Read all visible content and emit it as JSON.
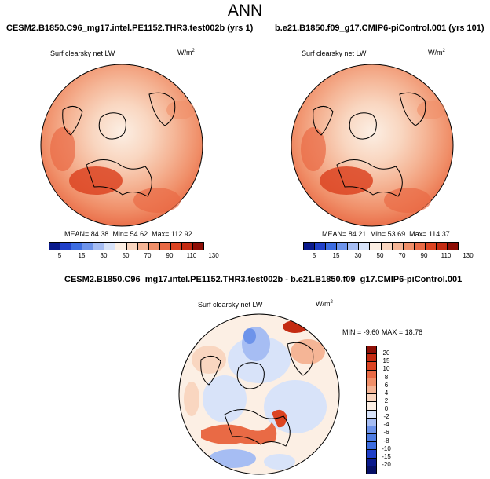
{
  "figure_title": "ANN",
  "panels": [
    {
      "case_name": "CESM2.B1850.C96_mg17.intel.PE1152.THR3.test002b (yrs 1)",
      "variable_label": "Surf clearsky net LW",
      "units": "W/m",
      "units_sup": "2",
      "stats": {
        "mean_label": "MEAN=",
        "mean": "84.38",
        "min_label": "Min=",
        "min": "54.62",
        "max_label": "Max=",
        "max": "112.92"
      }
    },
    {
      "case_name": "b.e21.B1850.f09_g17.CMIP6-piControl.001 (yrs 101)",
      "variable_label": "Surf clearsky net LW",
      "units": "W/m",
      "units_sup": "2",
      "stats": {
        "mean_label": "MEAN=",
        "mean": "84.21",
        "min_label": "Min=",
        "min": "53.69",
        "max_label": "Max=",
        "max": "114.37"
      }
    }
  ],
  "diff_panel": {
    "case_name": "CESM2.B1850.C96_mg17.intel.PE1152.THR3.test002b - b.e21.B1850.f09_g17.CMIP6-piControl.001",
    "variable_label": "Surf clearsky net LW",
    "units": "W/m",
    "units_sup": "2",
    "stats": {
      "min_label": "MIN =",
      "min": "-9.60",
      "max_label": "MAX =",
      "max": "18.78"
    }
  },
  "colorbar_abs": {
    "labels": [
      "5",
      "15",
      "30",
      "50",
      "70",
      "90",
      "110",
      "130"
    ],
    "colors": [
      "#0a1a8c",
      "#1f3fc8",
      "#3c6ce0",
      "#6d93ea",
      "#a6bdf3",
      "#d8e3f9",
      "#fcefe4",
      "#f9d6c0",
      "#f5b596",
      "#f08f69",
      "#e96a45",
      "#dc4422",
      "#c42b12",
      "#8e0e06"
    ]
  },
  "colorbar_diff": {
    "labels": [
      "20",
      "15",
      "10",
      "8",
      "6",
      "4",
      "2",
      "0",
      "-2",
      "-4",
      "-6",
      "-8",
      "-10",
      "-15",
      "-20"
    ],
    "colors": [
      "#8e0e06",
      "#c42b12",
      "#dc4422",
      "#e96a45",
      "#f08f69",
      "#f5b596",
      "#f9d6c0",
      "#fcefe4",
      "#d8e3f9",
      "#a6bdf3",
      "#6d93ea",
      "#4e7de3",
      "#3c6ce0",
      "#1f3fc8",
      "#0a1a8c",
      "#061066"
    ]
  },
  "chart_data": [
    {
      "type": "heatmap",
      "title": "CESM2.B1850.C96_mg17.intel.PE1152.THR3.test002b (yrs 1)",
      "variable": "Surf clearsky net LW",
      "units": "W/m2",
      "projection": "north polar stereographic",
      "mean": 84.38,
      "min": 54.62,
      "max": 112.92,
      "colorbar_levels": [
        5,
        15,
        30,
        50,
        70,
        90,
        110,
        130
      ]
    },
    {
      "type": "heatmap",
      "title": "b.e21.B1850.f09_g17.CMIP6-piControl.001 (yrs 101)",
      "variable": "Surf clearsky net LW",
      "units": "W/m2",
      "projection": "north polar stereographic",
      "mean": 84.21,
      "min": 53.69,
      "max": 114.37,
      "colorbar_levels": [
        5,
        15,
        30,
        50,
        70,
        90,
        110,
        130
      ]
    },
    {
      "type": "heatmap",
      "title": "CESM2.B1850.C96_mg17.intel.PE1152.THR3.test002b - b.e21.B1850.f09_g17.CMIP6-piControl.001",
      "variable": "Surf clearsky net LW",
      "units": "W/m2",
      "projection": "north polar stereographic",
      "min": -9.6,
      "max": 18.78,
      "colorbar_levels": [
        20,
        15,
        10,
        8,
        6,
        4,
        2,
        0,
        -2,
        -4,
        -6,
        -8,
        -10,
        -15,
        -20
      ]
    }
  ]
}
